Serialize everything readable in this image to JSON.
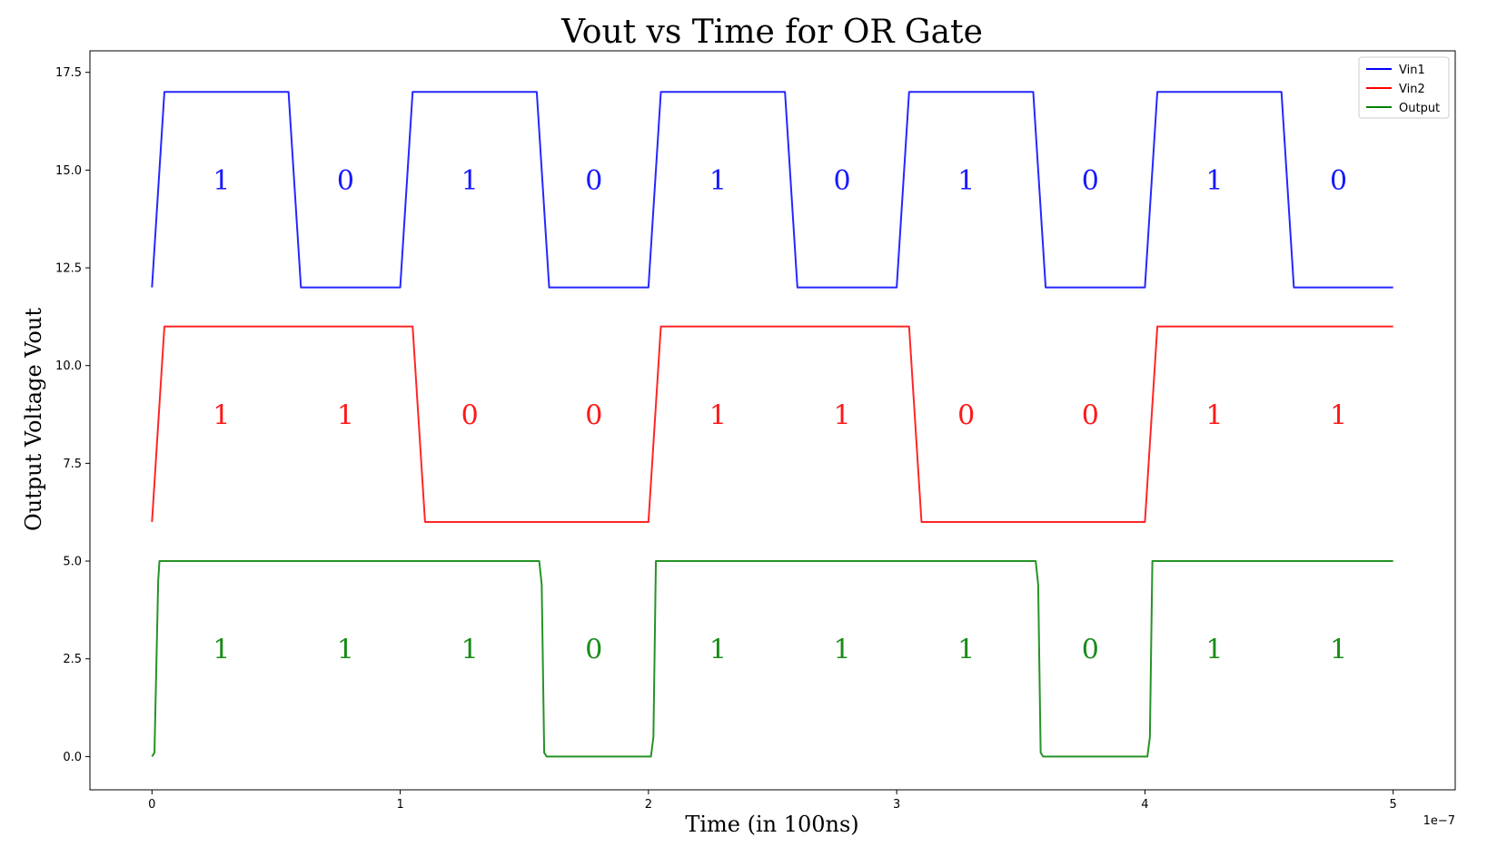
{
  "chart_data": {
    "type": "line",
    "title": "Vout vs Time for OR Gate",
    "xlabel": "Time (in 100ns)",
    "ylabel": "Output Voltage Vout",
    "x_offset_label": "1e−7",
    "xlim": [
      -0.25,
      5.25
    ],
    "ylim": [
      -0.85,
      18.05
    ],
    "x_ticks": [
      0,
      1,
      2,
      3,
      4,
      5
    ],
    "x_tick_labels": [
      "0",
      "1",
      "2",
      "3",
      "4",
      "5"
    ],
    "y_ticks": [
      0.0,
      2.5,
      5.0,
      7.5,
      10.0,
      12.5,
      15.0,
      17.5
    ],
    "y_tick_labels": [
      "0.0",
      "2.5",
      "5.0",
      "7.5",
      "10.0",
      "12.5",
      "15.0",
      "17.5"
    ],
    "grid": false,
    "legend_position": "top-right",
    "series": [
      {
        "name": "Vin1",
        "color": "#0000ff",
        "x": [
          0,
          0.05,
          0.55,
          0.6,
          1.0,
          1.05,
          1.55,
          1.6,
          2.0,
          2.05,
          2.55,
          2.6,
          3.0,
          3.05,
          3.55,
          3.6,
          4.0,
          4.05,
          4.55,
          4.6,
          5.0
        ],
        "y": [
          12,
          17,
          17,
          12,
          12,
          17,
          17,
          12,
          12,
          17,
          17,
          12,
          12,
          17,
          17,
          12,
          12,
          17,
          17,
          12,
          12
        ]
      },
      {
        "name": "Vin2",
        "color": "#ff0000",
        "x": [
          0,
          0.05,
          1.05,
          1.1,
          2.0,
          2.05,
          3.05,
          3.1,
          4.0,
          4.05,
          5.0
        ],
        "y": [
          6,
          11,
          11,
          6,
          6,
          11,
          11,
          6,
          6,
          11,
          11
        ]
      },
      {
        "name": "Output",
        "color": "#008000",
        "x": [
          0,
          0.01,
          0.025,
          0.03,
          0.06,
          1.56,
          1.57,
          1.58,
          1.59,
          1.6,
          2.01,
          2.02,
          2.03,
          2.06,
          3.56,
          3.57,
          3.58,
          3.59,
          3.6,
          4.01,
          4.02,
          4.03,
          4.06,
          5.0
        ],
        "y": [
          0,
          0.1,
          4.5,
          5.0,
          5.0,
          5.0,
          4.4,
          0.1,
          0.0,
          0.0,
          0.0,
          0.5,
          5.0,
          5.0,
          5.0,
          4.4,
          0.1,
          0.0,
          0.0,
          0.0,
          0.5,
          5.0,
          5.0,
          5.0
        ]
      }
    ],
    "annotations": [
      {
        "series": "Vin1",
        "color": "#0000ff",
        "y": 14.5,
        "x": [
          0.28,
          0.78,
          1.28,
          1.78,
          2.28,
          2.78,
          3.28,
          3.78,
          4.28,
          4.78
        ],
        "text": [
          "1",
          "0",
          "1",
          "0",
          "1",
          "0",
          "1",
          "0",
          "1",
          "0"
        ]
      },
      {
        "series": "Vin2",
        "color": "#ff0000",
        "y": 8.5,
        "x": [
          0.28,
          0.78,
          1.28,
          1.78,
          2.28,
          2.78,
          3.28,
          3.78,
          4.28,
          4.78
        ],
        "text": [
          "1",
          "1",
          "0",
          "0",
          "1",
          "1",
          "0",
          "0",
          "1",
          "1"
        ]
      },
      {
        "series": "Output",
        "color": "#008000",
        "y": 2.5,
        "x": [
          0.28,
          0.78,
          1.28,
          1.78,
          2.28,
          2.78,
          3.28,
          3.78,
          4.28,
          4.78
        ],
        "text": [
          "1",
          "1",
          "1",
          "0",
          "1",
          "1",
          "1",
          "0",
          "1",
          "1"
        ]
      }
    ]
  }
}
